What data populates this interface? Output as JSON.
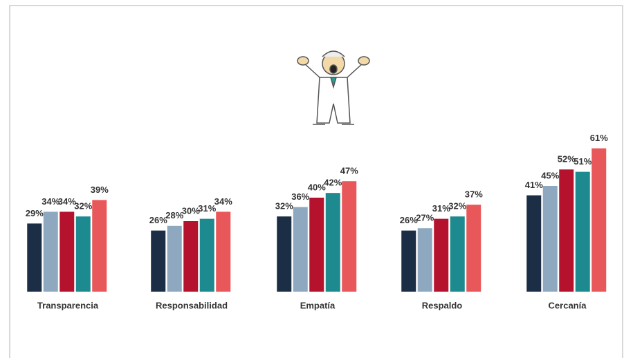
{
  "chart_data": {
    "type": "bar",
    "categories": [
      "Transparencia",
      "Responsabilidad",
      "Empatía",
      "Respaldo",
      "Cercanía"
    ],
    "series": [
      {
        "color": "#1b2e45",
        "values": [
          29,
          26,
          32,
          26,
          41
        ],
        "value_labels": [
          "29%",
          "26%",
          "32%",
          "26%",
          "41%"
        ]
      },
      {
        "color": "#8ea9bf",
        "values": [
          34,
          28,
          36,
          27,
          45
        ],
        "value_labels": [
          "34%",
          "28%",
          "36%",
          "27%",
          "45%"
        ]
      },
      {
        "color": "#b5122e",
        "values": [
          34,
          30,
          40,
          31,
          52
        ],
        "value_labels": [
          "34%",
          "30%",
          "40%",
          "31%",
          "52%"
        ]
      },
      {
        "color": "#1d8a8f",
        "values": [
          32,
          31,
          42,
          32,
          51
        ],
        "value_labels": [
          "32%",
          "31%",
          "42%",
          "32%",
          "51%"
        ]
      },
      {
        "color": "#e8585a",
        "values": [
          39,
          34,
          47,
          37,
          61
        ],
        "value_labels": [
          "39%",
          "34%",
          "47%",
          "37%",
          "61%"
        ]
      }
    ]
  }
}
